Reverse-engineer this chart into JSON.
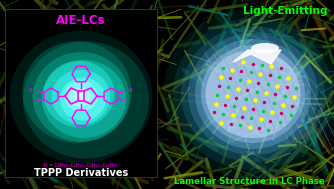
{
  "bg_color": "#000000",
  "title_light_emitting": "Light-Emitting",
  "title_lamellar": "Lamellar Structure in LC Phase",
  "label_aie_lcs": "AIE-LCs",
  "label_tppp": "TPPP Derivatives",
  "label_r": "R = C₆H₁₃, C₈H₁₅, C₉H₁₇, C₁₂H₂₅",
  "green_text_color": "#00ff00",
  "magenta_color": "#ff00ff",
  "yellow_color": "#ffff00",
  "lc_background": "#c8ddf8",
  "lamellar_dot_yellow": "#ffff00",
  "lamellar_dot_magenta": "#cc0066",
  "lamellar_dot_green": "#00cc44",
  "tex_colors": [
    "#1a3a00",
    "#0a2a10",
    "#003020",
    "#152510",
    "#0d1d08",
    "#253510",
    "#102818",
    "#1e3c08",
    "#304000",
    "#203800",
    "#405800",
    "#2a4a10",
    "#005040",
    "#506000",
    "#6a8000",
    "#4a6020",
    "#607020",
    "#503000",
    "#402800"
  ],
  "bright_colors": [
    "#607800",
    "#406020",
    "#007060",
    "#408040",
    "#708000",
    "#90a000",
    "#608000",
    "#a09000",
    "#807000"
  ]
}
